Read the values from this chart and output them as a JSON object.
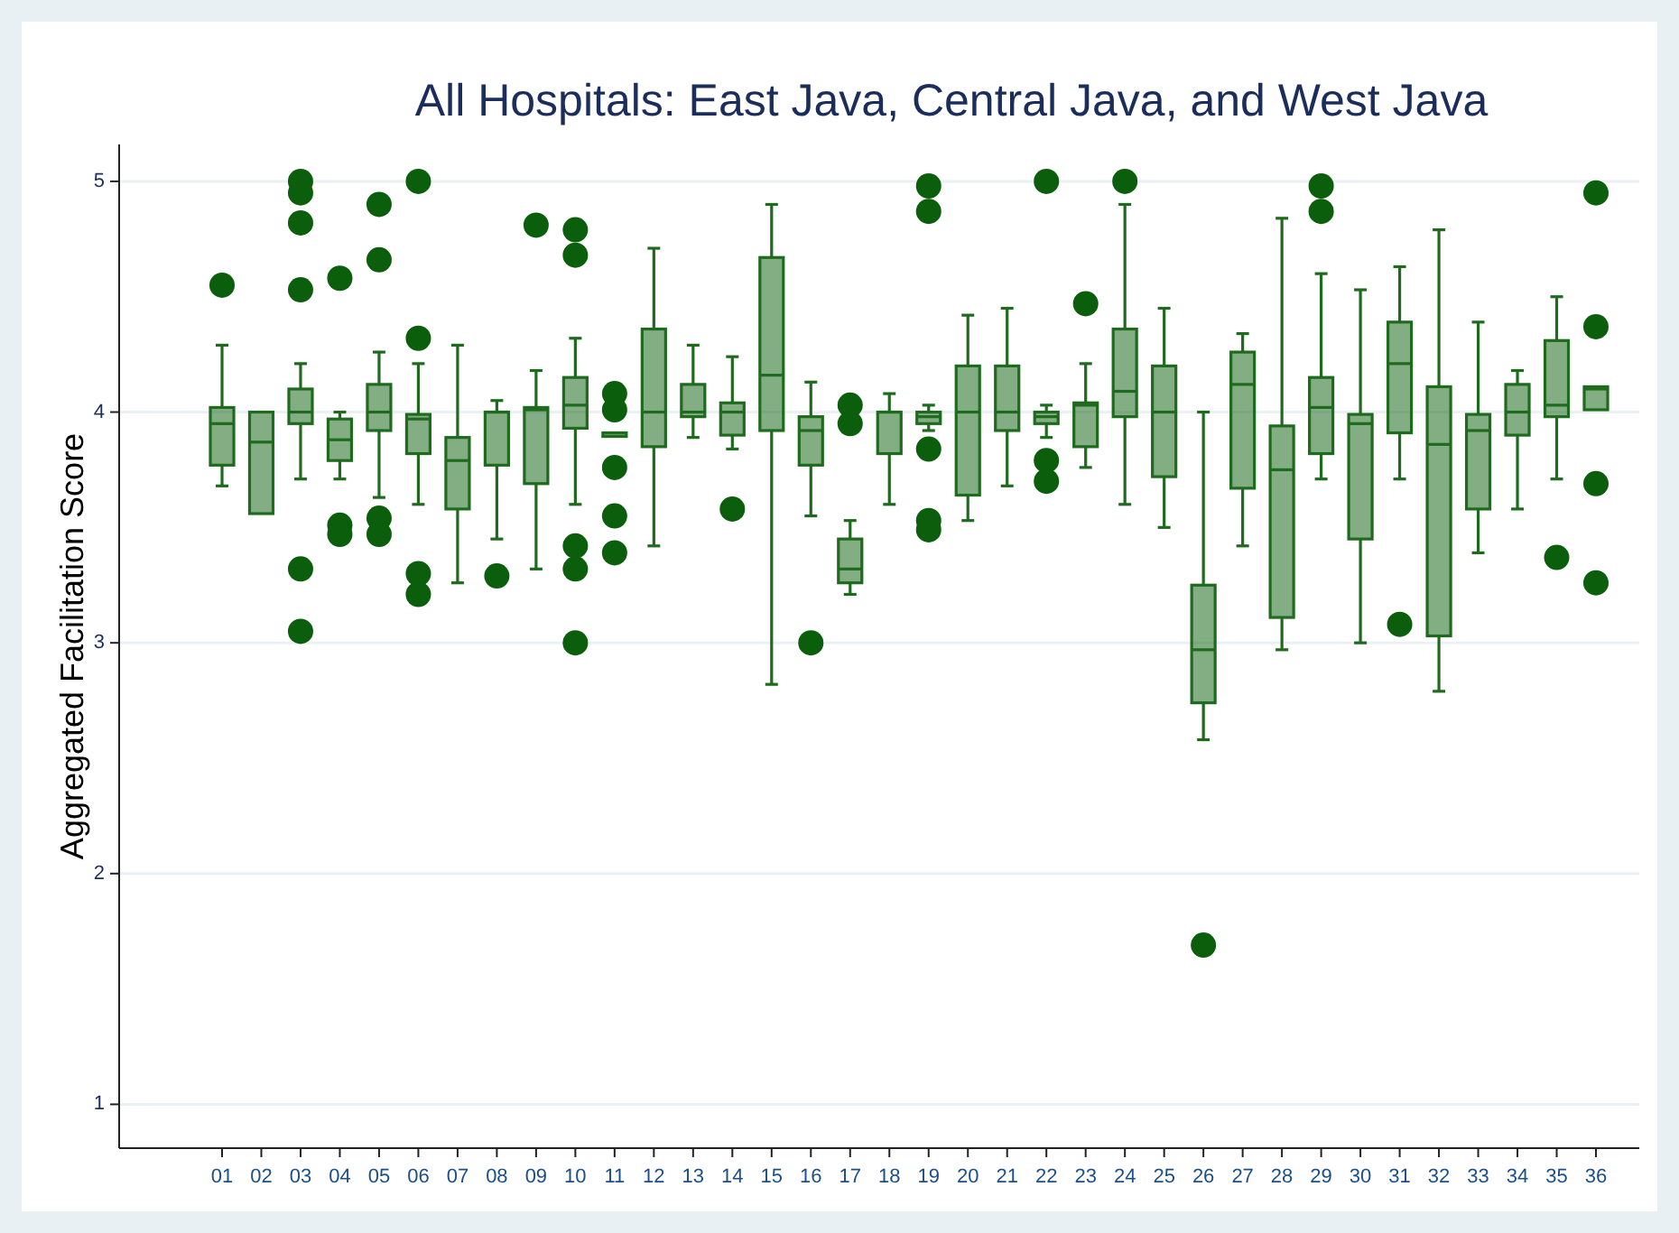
{
  "chart_data": {
    "type": "box",
    "title": "All Hospitals: East Java, Central Java, and West Java",
    "ylabel": "Aggregated Facilitation Score",
    "categories": [
      "01",
      "02",
      "03",
      "04",
      "05",
      "06",
      "07",
      "08",
      "09",
      "10",
      "11",
      "12",
      "13",
      "14",
      "15",
      "16",
      "17",
      "18",
      "19",
      "20",
      "21",
      "22",
      "23",
      "24",
      "25",
      "26",
      "27",
      "28",
      "29",
      "30",
      "31",
      "32",
      "33",
      "34",
      "35",
      "36"
    ],
    "ylim": [
      0.81,
      5.16
    ],
    "yticks": [
      1,
      2,
      3,
      4,
      5
    ],
    "grid": "y",
    "color": "#1e6b1e",
    "boxes": [
      {
        "low": 3.68,
        "q1": 3.77,
        "median": 3.95,
        "q3": 4.02,
        "high": 4.29,
        "outliers": [
          4.55
        ]
      },
      {
        "low": 3.56,
        "q1": 3.56,
        "median": 3.87,
        "q3": 4.0,
        "high": 4.0
      },
      {
        "low": 3.71,
        "q1": 3.95,
        "median": 4.0,
        "q3": 4.1,
        "high": 4.21,
        "outliers": [
          5.0,
          4.95,
          4.82,
          4.53,
          3.32,
          3.05
        ]
      },
      {
        "low": 3.71,
        "q1": 3.79,
        "median": 3.88,
        "q3": 3.97,
        "high": 4.0,
        "outliers": [
          4.58,
          3.51,
          3.47
        ]
      },
      {
        "low": 3.63,
        "q1": 3.92,
        "median": 4.0,
        "q3": 4.12,
        "high": 4.26,
        "outliers": [
          4.9,
          4.66,
          3.54,
          3.47
        ]
      },
      {
        "low": 3.6,
        "q1": 3.82,
        "median": 3.97,
        "q3": 3.99,
        "high": 4.21,
        "outliers": [
          5.0,
          4.32,
          3.3,
          3.21
        ]
      },
      {
        "low": 3.26,
        "q1": 3.58,
        "median": 3.79,
        "q3": 3.89,
        "high": 4.29
      },
      {
        "low": 3.45,
        "q1": 3.77,
        "median": 4.0,
        "q3": 4.0,
        "high": 4.05,
        "outliers": [
          3.29
        ]
      },
      {
        "low": 3.32,
        "q1": 3.69,
        "median": 4.01,
        "q3": 4.02,
        "high": 4.18,
        "outliers": [
          4.81
        ]
      },
      {
        "low": 3.6,
        "q1": 3.93,
        "median": 4.03,
        "q3": 4.15,
        "high": 4.32,
        "outliers": [
          4.79,
          4.68,
          3.42,
          3.32,
          3.0
        ]
      },
      {
        "low": 3.91,
        "q1": 3.91,
        "median": 3.91,
        "q3": 3.91,
        "high": 3.91,
        "outliers": [
          4.08,
          4.01,
          3.76,
          3.55,
          3.39
        ]
      },
      {
        "low": 3.42,
        "q1": 3.85,
        "median": 4.0,
        "q3": 4.36,
        "high": 4.71
      },
      {
        "low": 3.89,
        "q1": 3.98,
        "median": 4.0,
        "q3": 4.12,
        "high": 4.29
      },
      {
        "low": 3.84,
        "q1": 3.9,
        "median": 4.0,
        "q3": 4.04,
        "high": 4.24,
        "outliers": [
          3.58
        ]
      },
      {
        "low": 2.82,
        "q1": 3.92,
        "median": 4.16,
        "q3": 4.67,
        "high": 4.9
      },
      {
        "low": 3.55,
        "q1": 3.77,
        "median": 3.92,
        "q3": 3.98,
        "high": 4.13,
        "outliers": [
          3.0
        ]
      },
      {
        "low": 3.21,
        "q1": 3.26,
        "median": 3.32,
        "q3": 3.45,
        "high": 3.53,
        "outliers": [
          4.03,
          3.95
        ]
      },
      {
        "low": 3.6,
        "q1": 3.82,
        "median": 4.0,
        "q3": 4.0,
        "high": 4.08
      },
      {
        "low": 3.92,
        "q1": 3.95,
        "median": 3.98,
        "q3": 4.0,
        "high": 4.03,
        "outliers": [
          4.98,
          4.87,
          3.84,
          3.53,
          3.49
        ]
      },
      {
        "low": 3.53,
        "q1": 3.64,
        "median": 4.0,
        "q3": 4.2,
        "high": 4.42
      },
      {
        "low": 3.68,
        "q1": 3.92,
        "median": 4.0,
        "q3": 4.2,
        "high": 4.45
      },
      {
        "low": 3.89,
        "q1": 3.95,
        "median": 3.98,
        "q3": 4.0,
        "high": 4.03,
        "outliers": [
          5.0,
          3.79,
          3.7
        ]
      },
      {
        "low": 3.76,
        "q1": 3.85,
        "median": 4.03,
        "q3": 4.04,
        "high": 4.21,
        "outliers": [
          4.47
        ]
      },
      {
        "low": 3.6,
        "q1": 3.98,
        "median": 4.09,
        "q3": 4.36,
        "high": 4.9,
        "outliers": [
          5.0
        ]
      },
      {
        "low": 3.5,
        "q1": 3.72,
        "median": 4.0,
        "q3": 4.2,
        "high": 4.45
      },
      {
        "low": 2.58,
        "q1": 2.74,
        "median": 2.97,
        "q3": 3.25,
        "high": 4.0,
        "outliers": [
          1.69
        ]
      },
      {
        "low": 3.42,
        "q1": 3.67,
        "median": 4.12,
        "q3": 4.26,
        "high": 4.34
      },
      {
        "low": 2.97,
        "q1": 3.11,
        "median": 3.75,
        "q3": 3.94,
        "high": 4.84
      },
      {
        "low": 3.71,
        "q1": 3.82,
        "median": 4.02,
        "q3": 4.15,
        "high": 4.6,
        "outliers": [
          4.98,
          4.87
        ]
      },
      {
        "low": 3.0,
        "q1": 3.45,
        "median": 3.95,
        "q3": 3.99,
        "high": 4.53
      },
      {
        "low": 3.71,
        "q1": 3.91,
        "median": 4.21,
        "q3": 4.39,
        "high": 4.63,
        "outliers": [
          3.08
        ]
      },
      {
        "low": 2.79,
        "q1": 3.03,
        "median": 3.86,
        "q3": 4.11,
        "high": 4.79
      },
      {
        "low": 3.39,
        "q1": 3.58,
        "median": 3.92,
        "q3": 3.99,
        "high": 4.39
      },
      {
        "low": 3.58,
        "q1": 3.9,
        "median": 4.0,
        "q3": 4.12,
        "high": 4.18
      },
      {
        "low": 3.71,
        "q1": 3.98,
        "median": 4.03,
        "q3": 4.31,
        "high": 4.5,
        "outliers": [
          3.37
        ]
      },
      {
        "low": 4.01,
        "q1": 4.01,
        "median": 4.1,
        "q3": 4.11,
        "high": 4.11,
        "outliers": [
          4.95,
          4.37,
          3.69,
          3.26
        ]
      }
    ]
  }
}
